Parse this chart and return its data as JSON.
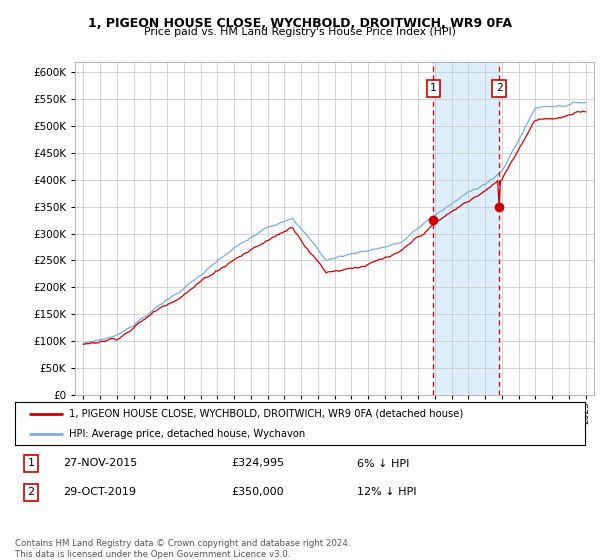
{
  "title": "1, PIGEON HOUSE CLOSE, WYCHBOLD, DROITWICH, WR9 0FA",
  "subtitle": "Price paid vs. HM Land Registry's House Price Index (HPI)",
  "legend_line1": "1, PIGEON HOUSE CLOSE, WYCHBOLD, DROITWICH, WR9 0FA (detached house)",
  "legend_line2": "HPI: Average price, detached house, Wychavon",
  "transaction1_date": "27-NOV-2015",
  "transaction1_price": "£324,995",
  "transaction1_hpi": "6% ↓ HPI",
  "transaction2_date": "29-OCT-2019",
  "transaction2_price": "£350,000",
  "transaction2_hpi": "12% ↓ HPI",
  "footnote": "Contains HM Land Registry data © Crown copyright and database right 2024.\nThis data is licensed under the Open Government Licence v3.0.",
  "red_color": "#cc0000",
  "blue_color": "#7aaddb",
  "shading_color": "#ddeeff",
  "marker1_year": 2015.9,
  "marker2_year": 2019.83,
  "transaction1_value": 324995,
  "transaction2_value": 350000,
  "ylim_min": 0,
  "ylim_max": 620000,
  "xlim_min": 1994.5,
  "xlim_max": 2025.5
}
